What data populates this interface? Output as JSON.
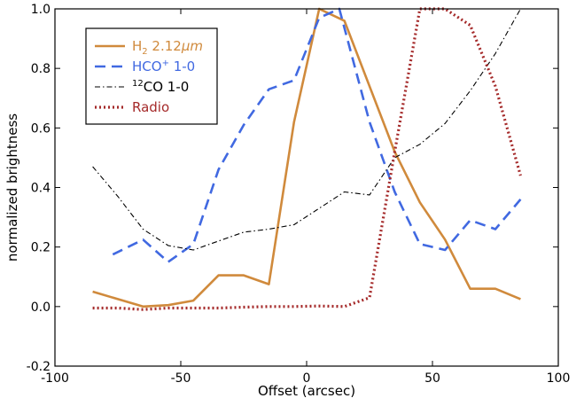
{
  "chart_data": {
    "type": "line",
    "xlabel": "Offset (arcsec)",
    "ylabel": "normalized brightness",
    "xlim": [
      -100,
      100
    ],
    "ylim": [
      -0.2,
      1.0
    ],
    "x_ticks": [
      -100,
      -50,
      0,
      50,
      100
    ],
    "x_tick_labels": [
      "-100",
      "-50",
      "0",
      "50",
      "100"
    ],
    "y_ticks": [
      -0.2,
      0.0,
      0.2,
      0.4,
      0.6,
      0.8,
      1.0
    ],
    "y_tick_labels": [
      "-0.2",
      "0.0",
      "0.2",
      "0.4",
      "0.6",
      "0.8",
      "1.0"
    ],
    "grid": false,
    "legend_position": "top-left",
    "series": [
      {
        "key": "h2",
        "legend_main": "H",
        "legend_sub": "2",
        "legend_rest": " 2.12",
        "legend_mu": "μ",
        "legend_unit": "m",
        "color": "#d08a3c",
        "dash": "solid",
        "x": [
          -85,
          -75,
          -65,
          -55,
          -45,
          -35,
          -25,
          -15,
          -5,
          5,
          15,
          25,
          35,
          45,
          55,
          65,
          75,
          85
        ],
        "y": [
          0.05,
          0.025,
          0.0,
          0.005,
          0.02,
          0.105,
          0.105,
          0.075,
          0.62,
          1.0,
          0.96,
          0.74,
          0.52,
          0.35,
          0.225,
          0.06,
          0.06,
          0.025
        ]
      },
      {
        "key": "hco",
        "legend_main": "HCO",
        "legend_sup": "+",
        "legend_rest": " 1-0",
        "color": "#4169e1",
        "dash": "dashed",
        "x": [
          -77,
          -65,
          -55,
          -45,
          -35,
          -25,
          -15,
          -5,
          5,
          13,
          25,
          35,
          45,
          55,
          65,
          75,
          85
        ],
        "y": [
          0.175,
          0.225,
          0.15,
          0.21,
          0.46,
          0.61,
          0.73,
          0.76,
          0.97,
          1.0,
          0.62,
          0.385,
          0.21,
          0.19,
          0.29,
          0.26,
          0.36
        ]
      },
      {
        "key": "co",
        "legend_sup": "12",
        "legend_main": "CO 1-0",
        "color": "#000000",
        "dash": "dashdot",
        "x": [
          -85,
          -75,
          -65,
          -55,
          -45,
          -35,
          -25,
          -15,
          -5,
          5,
          15,
          25,
          35,
          45,
          55,
          65,
          75,
          85
        ],
        "y": [
          0.47,
          0.37,
          0.26,
          0.205,
          0.19,
          0.22,
          0.25,
          0.26,
          0.275,
          0.33,
          0.385,
          0.375,
          0.5,
          0.545,
          0.615,
          0.725,
          0.85,
          1.0
        ]
      },
      {
        "key": "radio",
        "legend_main": "Radio",
        "color": "#a52a2a",
        "dash": "dotted",
        "x": [
          -85,
          -75,
          -65,
          -55,
          -45,
          -35,
          -25,
          -15,
          -5,
          5,
          15,
          25,
          35,
          45,
          55,
          65,
          75,
          85
        ],
        "y": [
          -0.005,
          -0.005,
          -0.01,
          -0.005,
          -0.005,
          -0.005,
          -0.002,
          0.0,
          0.0,
          0.002,
          0.0,
          0.03,
          0.52,
          1.0,
          1.0,
          0.945,
          0.74,
          0.44
        ]
      }
    ]
  }
}
